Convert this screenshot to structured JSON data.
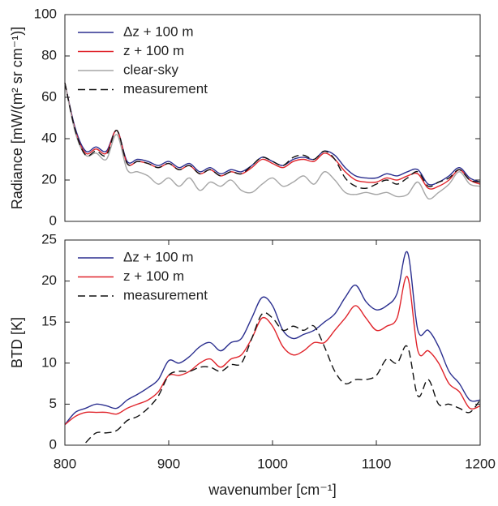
{
  "chart_data": [
    {
      "type": "line",
      "ylabel": "Radiance [mW/(m² sr cm⁻¹)]",
      "x": [
        800,
        810,
        820,
        830,
        840,
        850,
        860,
        870,
        880,
        890,
        900,
        910,
        920,
        930,
        940,
        950,
        960,
        970,
        980,
        990,
        1000,
        1010,
        1020,
        1030,
        1040,
        1050,
        1060,
        1070,
        1080,
        1090,
        1100,
        1110,
        1120,
        1130,
        1140,
        1150,
        1160,
        1170,
        1180,
        1190,
        1200
      ],
      "xlim": [
        800,
        1200
      ],
      "ylim": [
        0,
        100
      ],
      "yticks": [
        0,
        20,
        40,
        60,
        80,
        100
      ],
      "legend": "upper left",
      "series": [
        {
          "name": "Δz + 100 m",
          "color": "#2b2f8f",
          "dash": false,
          "values": [
            67,
            45,
            34,
            36,
            34,
            44,
            29,
            30,
            29,
            27,
            29,
            26,
            28,
            24,
            26,
            23,
            25,
            24,
            27,
            31,
            29,
            27,
            30,
            31,
            30,
            34,
            32,
            26,
            22,
            21,
            21,
            23,
            22,
            24,
            25,
            18,
            19,
            22,
            26,
            21,
            19
          ]
        },
        {
          "name": "z + 100 m",
          "color": "#e0242b",
          "dash": false,
          "values": [
            67,
            44,
            33,
            35,
            33,
            44,
            28,
            29,
            28,
            26,
            28,
            25,
            27,
            23,
            25,
            22,
            24,
            23,
            26,
            30,
            28,
            26,
            29,
            30,
            29,
            33,
            30,
            24,
            20,
            19,
            19,
            21,
            20,
            22,
            23,
            16,
            17,
            20,
            25,
            20,
            18
          ]
        },
        {
          "name": "clear-sky",
          "color": "#a6a6a6",
          "dash": false,
          "values": [
            67,
            43,
            32,
            33,
            30,
            42,
            25,
            24,
            22,
            18,
            21,
            17,
            21,
            15,
            19,
            17,
            20,
            15,
            14,
            18,
            21,
            17,
            19,
            22,
            18,
            24,
            20,
            14,
            13,
            14,
            13,
            14,
            12,
            13,
            19,
            11,
            14,
            18,
            24,
            18,
            17
          ]
        },
        {
          "name": "measurement",
          "color": "#111111",
          "dash": true,
          "values": [
            67,
            44,
            32,
            34,
            32,
            44,
            28,
            29,
            28,
            26,
            28,
            25,
            27,
            23,
            25,
            22,
            24,
            23,
            27,
            31,
            29,
            27,
            31,
            32,
            30,
            34,
            30,
            21,
            17,
            16,
            18,
            20,
            18,
            21,
            24,
            17,
            19,
            21,
            25,
            20,
            19
          ]
        }
      ]
    },
    {
      "type": "line",
      "ylabel": "BTD [K]",
      "xlabel": "wavenumber [cm⁻¹]",
      "x": [
        800,
        810,
        820,
        830,
        840,
        850,
        860,
        870,
        880,
        890,
        900,
        910,
        920,
        930,
        940,
        950,
        960,
        970,
        980,
        990,
        1000,
        1010,
        1020,
        1030,
        1040,
        1050,
        1060,
        1070,
        1080,
        1090,
        1100,
        1110,
        1120,
        1130,
        1140,
        1150,
        1160,
        1170,
        1180,
        1190,
        1200
      ],
      "xlim": [
        800,
        1200
      ],
      "xticks": [
        800,
        900,
        1000,
        1100,
        1200
      ],
      "ylim": [
        0,
        25
      ],
      "yticks": [
        0,
        5,
        10,
        15,
        20,
        25
      ],
      "legend": "upper left",
      "series": [
        {
          "name": "Δz + 100 m",
          "color": "#2b2f8f",
          "dash": false,
          "values": [
            2.5,
            4,
            4.5,
            5,
            4.8,
            4.5,
            5.5,
            6.2,
            7,
            8,
            10.3,
            10,
            10.8,
            12,
            12.5,
            11.5,
            12.5,
            13,
            15.5,
            18,
            17,
            14,
            13,
            13.5,
            14,
            15,
            16,
            18,
            19.5,
            17.5,
            16.5,
            17,
            18.5,
            23.5,
            14,
            14,
            12,
            9,
            7.5,
            5.5,
            5.5
          ]
        },
        {
          "name": "z + 100 m",
          "color": "#e0242b",
          "dash": false,
          "values": [
            2.5,
            3.5,
            4,
            4,
            4,
            3.8,
            4.5,
            5,
            5.5,
            6.5,
            8.5,
            8.5,
            9,
            10,
            10.5,
            9.5,
            10.5,
            11,
            13,
            15.5,
            14.5,
            12,
            11,
            11.5,
            12.5,
            12.5,
            14,
            15.5,
            17,
            15.5,
            14,
            14.5,
            15.5,
            20.5,
            11.5,
            11.5,
            10,
            7.5,
            6.5,
            4.5,
            4.8
          ]
        },
        {
          "name": "measurement",
          "color": "#111111",
          "dash": true,
          "values": [
            null,
            null,
            0.3,
            1.5,
            1.5,
            1.8,
            3,
            3.5,
            4.5,
            6,
            8.5,
            9,
            9,
            9.5,
            9.5,
            9,
            9.8,
            10,
            13,
            16,
            15.5,
            14,
            14.5,
            14,
            14.5,
            12,
            9,
            7.5,
            8,
            8,
            8.5,
            10.5,
            10,
            12,
            6,
            8,
            5,
            5,
            4.5,
            4,
            5.5
          ]
        }
      ]
    }
  ]
}
